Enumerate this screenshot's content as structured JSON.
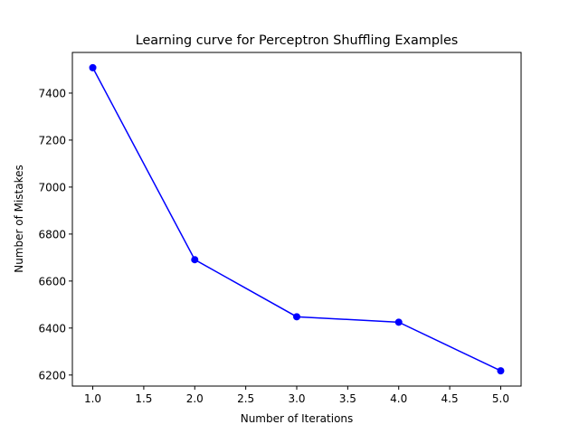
{
  "chart_data": {
    "type": "line",
    "title": "Learning curve for Perceptron Shuffling Examples",
    "xlabel": "Number of Iterations",
    "ylabel": "Number of Mistakes",
    "x": [
      1.0,
      2.0,
      3.0,
      4.0,
      5.0
    ],
    "series": [
      {
        "values": [
          7508,
          6691,
          6448,
          6425,
          6218
        ],
        "color": "#0000ff",
        "marker": "circle"
      }
    ],
    "xlim": [
      0.8,
      5.2
    ],
    "ylim": [
      6153,
      7573
    ],
    "xticks": [
      1.0,
      1.5,
      2.0,
      2.5,
      3.0,
      3.5,
      4.0,
      4.5,
      5.0
    ],
    "xtick_labels": [
      "1.0",
      "1.5",
      "2.0",
      "2.5",
      "3.0",
      "3.5",
      "4.0",
      "4.5",
      "5.0"
    ],
    "yticks": [
      6200,
      6400,
      6600,
      6800,
      7000,
      7200,
      7400
    ],
    "ytick_labels": [
      "6200",
      "6400",
      "6600",
      "6800",
      "7000",
      "7200",
      "7400"
    ],
    "grid": false,
    "legend": "none"
  }
}
